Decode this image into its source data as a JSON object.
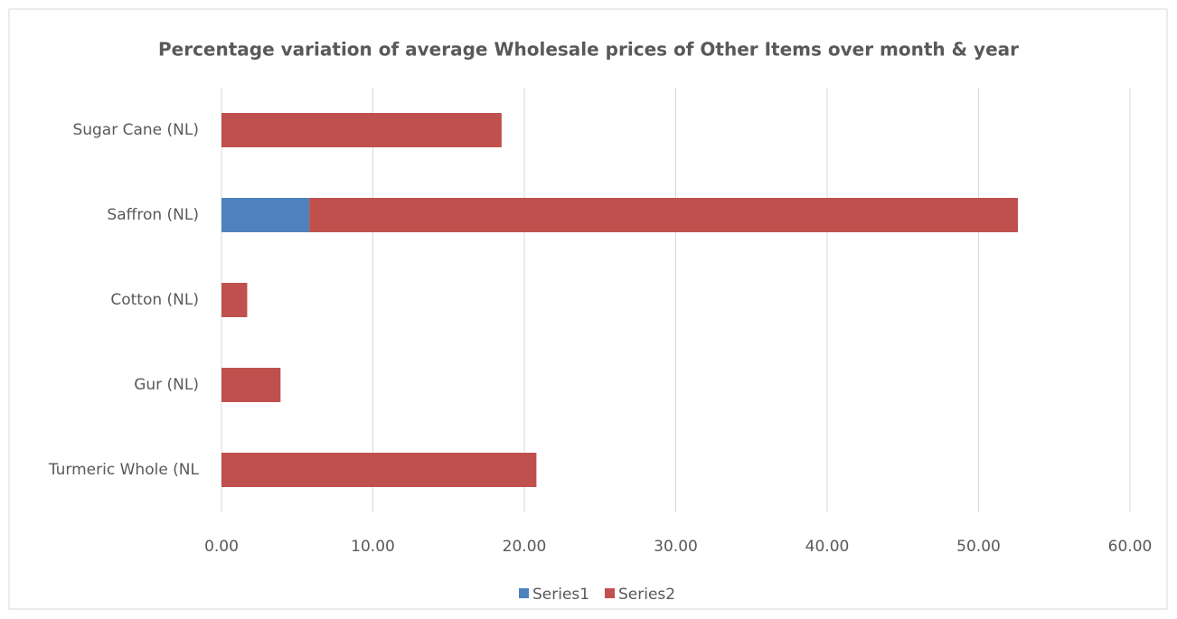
{
  "chart_data": {
    "type": "stacked-bar-horizontal",
    "title": "Percentage variation of average Wholesale prices of Other Items  over month & year",
    "categories": [
      "Sugar Cane (NL)",
      "Saffron (NL)",
      "Cotton (NL)",
      "Gur (NL)",
      "Turmeric Whole (NL"
    ],
    "series": [
      {
        "name": "Series1",
        "color": "#4f81bd",
        "values": [
          0,
          5.8,
          0,
          0,
          0
        ]
      },
      {
        "name": "Series2",
        "color": "#c0504d",
        "values": [
          18.5,
          46.8,
          1.7,
          3.9,
          20.8
        ]
      }
    ],
    "xlim": [
      0,
      60
    ],
    "xticks": [
      {
        "value": 0,
        "label": "0.00"
      },
      {
        "value": 10,
        "label": "10.00"
      },
      {
        "value": 20,
        "label": "20.00"
      },
      {
        "value": 30,
        "label": "30.00"
      },
      {
        "value": 40,
        "label": "40.00"
      },
      {
        "value": 50,
        "label": "50.00"
      },
      {
        "value": 60,
        "label": "60.00"
      }
    ],
    "grid": true,
    "legend": "bottom"
  }
}
